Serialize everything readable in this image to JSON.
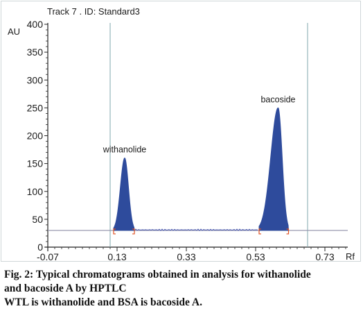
{
  "chart_data": {
    "type": "line",
    "title": "Track 7 . ID: Standard3",
    "ylabel": "AU",
    "xlabel": "Rf",
    "xlim": [
      -0.07,
      1.0
    ],
    "ylim": [
      0,
      400
    ],
    "x_ticks": [
      -0.07,
      0.13,
      0.33,
      0.53,
      0.73,
      0.93
    ],
    "x_tick_labels": [
      "-0.07",
      "0.13",
      "0.33",
      "0.53",
      "0.73",
      "0.93"
    ],
    "y_ticks": [
      0,
      50,
      100,
      150,
      200,
      250,
      300,
      350,
      400
    ],
    "y_tick_labels": [
      "0",
      "50",
      "100",
      "150",
      "200",
      "250",
      "300",
      "350",
      "400"
    ],
    "baseline_au": 30,
    "vertical_markers_rf": [
      0.11,
      0.68
    ],
    "peaks": [
      {
        "label": "withanolide",
        "rf": 0.152,
        "height_au": 160,
        "start_rf": 0.12,
        "end_rf": 0.18
      },
      {
        "label": "bacoside",
        "rf": 0.595,
        "height_au": 250,
        "start_rf": 0.54,
        "end_rf": 0.625
      }
    ],
    "colors": {
      "fill": "#2e4b9c",
      "baseline": "#8f8fa8",
      "marker_line": "#7fa7ac",
      "integration_marks": "#e05020"
    }
  },
  "caption": {
    "line1": "Fig. 2: Typical chromatograms obtained in analysis for withanolide",
    "line2": "and bacoside A by HPTLC",
    "line3": "WTL is withanolide and BSA is bacoside A."
  }
}
